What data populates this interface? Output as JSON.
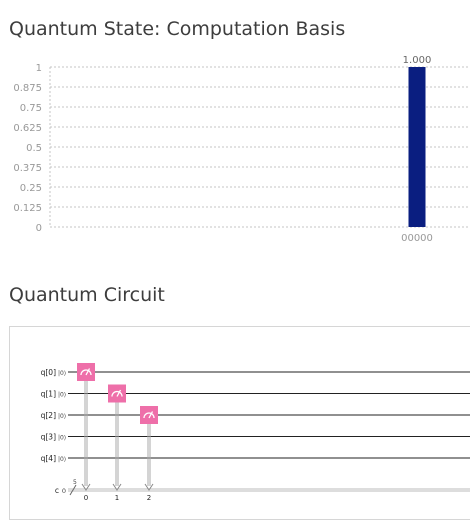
{
  "chart_data": {
    "type": "bar",
    "title": "Quantum State: Computation Basis",
    "categories": [
      "00000"
    ],
    "values": [
      1.0
    ],
    "data_labels": [
      "1.000"
    ],
    "ylim": [
      0,
      1
    ],
    "yticks": [
      "0",
      "0.125",
      "0.25",
      "0.375",
      "0.5",
      "0.625",
      "0.75",
      "0.875",
      "1"
    ],
    "grid": true,
    "xlabel": "",
    "ylabel": "",
    "bar_color": "#0a1e80"
  },
  "circuit": {
    "title": "Quantum Circuit",
    "qubits": [
      "q[0]",
      "q[1]",
      "q[2]",
      "q[3]",
      "q[4]"
    ],
    "init_state": "|0⟩",
    "classical_label": "c",
    "classical_init": "0",
    "classical_width": "5",
    "measurements": [
      {
        "qubit": 0,
        "bit": "0"
      },
      {
        "qubit": 1,
        "bit": "1"
      },
      {
        "qubit": 2,
        "bit": "2"
      }
    ],
    "gate_color": "#ee6fa9"
  }
}
